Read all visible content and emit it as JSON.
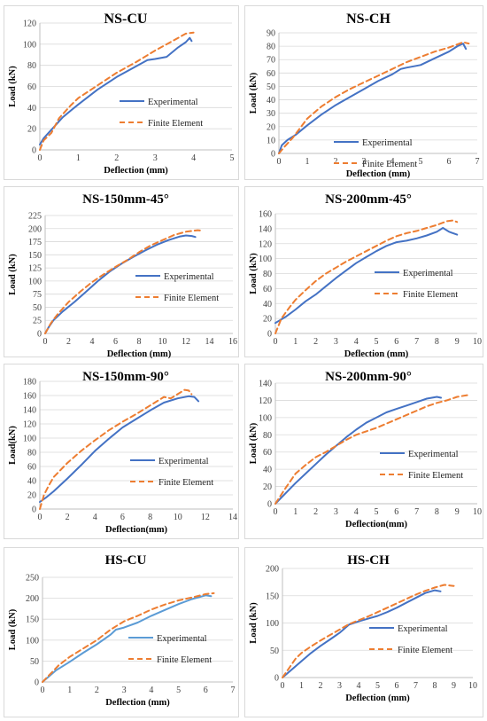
{
  "chart_data": [
    {
      "type": "line",
      "title": "NS-CU",
      "xlabel": "Deflection (mm)",
      "ylabel": "Load (kN)",
      "xlim": [
        0,
        5
      ],
      "xticks": [
        0,
        1,
        2,
        3,
        4,
        5
      ],
      "ylim": [
        0,
        120
      ],
      "yticks": [
        0,
        20,
        40,
        60,
        80,
        100,
        120
      ],
      "series": [
        {
          "name": "Experimental",
          "color": "#4472c4",
          "dash": false,
          "x": [
            0,
            0.1,
            0.2,
            0.4,
            0.6,
            0.8,
            1.0,
            1.5,
            2.0,
            2.5,
            2.8,
            3.0,
            3.3,
            3.6,
            3.8,
            3.9,
            3.95
          ],
          "y": [
            5,
            11,
            15,
            23,
            31,
            37,
            43,
            57,
            69,
            79,
            85,
            86,
            88,
            97,
            102,
            106,
            103
          ]
        },
        {
          "name": "Finite Element",
          "color": "#ed7d31",
          "dash": true,
          "x": [
            0,
            0.1,
            0.3,
            0.5,
            0.8,
            1.0,
            1.5,
            2.0,
            2.5,
            3.0,
            3.5,
            3.8,
            4.0
          ],
          "y": [
            0,
            9,
            16,
            30,
            42,
            49,
            61,
            73,
            83,
            94,
            104,
            110,
            111
          ]
        }
      ]
    },
    {
      "type": "line",
      "title": "NS-CH",
      "xlabel": "Deflection (mm)",
      "ylabel": "Load (kN)",
      "xlim": [
        0,
        7
      ],
      "xticks": [
        0,
        1,
        2,
        3,
        4,
        5,
        6,
        7
      ],
      "ylim": [
        0,
        90
      ],
      "yticks": [
        0,
        10,
        20,
        30,
        40,
        50,
        60,
        70,
        80,
        90
      ],
      "series": [
        {
          "name": "Experimental",
          "color": "#4472c4",
          "dash": false,
          "x": [
            0,
            0.1,
            0.3,
            0.6,
            1.0,
            1.5,
            2.0,
            2.5,
            3.0,
            3.5,
            4.0,
            4.3,
            4.5,
            5.0,
            5.5,
            6.0,
            6.3,
            6.5,
            6.6
          ],
          "y": [
            0,
            6,
            10,
            14,
            21,
            29,
            36,
            42,
            48,
            54,
            59,
            63,
            64,
            66,
            71,
            76,
            80,
            82,
            78
          ]
        },
        {
          "name": "Finite Element",
          "color": "#ed7d31",
          "dash": true,
          "x": [
            0,
            0.2,
            0.5,
            1.0,
            1.5,
            2.0,
            2.5,
            3.0,
            3.5,
            4.0,
            4.5,
            5.0,
            5.5,
            6.0,
            6.5,
            6.7
          ],
          "y": [
            0,
            5,
            12,
            26,
            35,
            42,
            48,
            53,
            58,
            63,
            68,
            72,
            76,
            79,
            83,
            82
          ]
        }
      ]
    },
    {
      "type": "line",
      "title": "NS-150mm-45°",
      "xlabel": "Deflection (mm)",
      "ylabel": "Load (kN)",
      "xlim": [
        0,
        16
      ],
      "xticks": [
        0,
        2,
        4,
        6,
        8,
        10,
        12,
        14,
        16
      ],
      "ylim": [
        0,
        225
      ],
      "yticks": [
        0,
        25,
        50,
        75,
        100,
        125,
        150,
        175,
        200,
        225
      ],
      "series": [
        {
          "name": "Experimental",
          "color": "#4472c4",
          "dash": false,
          "x": [
            0,
            0.3,
            0.7,
            1.5,
            2.5,
            3.5,
            4.5,
            5.5,
            6.5,
            7.5,
            8.5,
            9.5,
            10.5,
            11.5,
            12.0,
            12.5,
            12.8
          ],
          "y": [
            0,
            12,
            25,
            42,
            60,
            80,
            100,
            118,
            133,
            146,
            158,
            169,
            178,
            185,
            187,
            186,
            184
          ]
        },
        {
          "name": "Finite Element",
          "color": "#ed7d31",
          "dash": true,
          "x": [
            0,
            0.5,
            1.0,
            2.0,
            3.0,
            4.0,
            5.0,
            6.0,
            7.0,
            8.0,
            9.0,
            10.0,
            11.0,
            12.0,
            13.0,
            13.4
          ],
          "y": [
            0,
            20,
            35,
            60,
            80,
            98,
            113,
            127,
            140,
            155,
            168,
            178,
            188,
            194,
            197,
            196
          ]
        }
      ]
    },
    {
      "type": "line",
      "title": "NS-200mm-45°",
      "xlabel": "Deflection (mm)",
      "ylabel": "Load (kN)",
      "xlim": [
        0,
        10
      ],
      "xticks": [
        0,
        1,
        2,
        3,
        4,
        5,
        6,
        7,
        8,
        9,
        10
      ],
      "ylim": [
        0,
        160
      ],
      "yticks": [
        0,
        20,
        40,
        60,
        80,
        100,
        120,
        140,
        160
      ],
      "series": [
        {
          "name": "Experimental",
          "color": "#4472c4",
          "dash": false,
          "x": [
            0,
            0.5,
            1.0,
            1.5,
            2.0,
            2.5,
            3.0,
            3.5,
            4.0,
            4.5,
            5.0,
            5.5,
            6.0,
            6.5,
            7.0,
            7.5,
            8.0,
            8.3,
            8.6,
            9.0
          ],
          "y": [
            14,
            22,
            32,
            43,
            52,
            63,
            74,
            84,
            94,
            102,
            110,
            117,
            122,
            124,
            127,
            131,
            136,
            141,
            136,
            132
          ]
        },
        {
          "name": "Finite Element",
          "color": "#ed7d31",
          "dash": true,
          "x": [
            0,
            0.3,
            0.7,
            1.0,
            1.5,
            2.0,
            2.5,
            3.0,
            3.5,
            4.0,
            4.5,
            5.0,
            5.5,
            6.0,
            6.5,
            7.0,
            7.5,
            8.0,
            8.5,
            8.8,
            9.0
          ],
          "y": [
            0,
            20,
            35,
            45,
            58,
            70,
            80,
            88,
            96,
            103,
            110,
            117,
            124,
            130,
            134,
            137,
            141,
            145,
            150,
            151,
            149
          ]
        }
      ]
    },
    {
      "type": "line",
      "title": "NS-150mm-90°",
      "xlabel": "Deflection(mm)",
      "ylabel": "Load(kN)",
      "xlim": [
        0,
        14
      ],
      "xticks": [
        0,
        2,
        4,
        6,
        8,
        10,
        12,
        14
      ],
      "ylim": [
        0,
        180
      ],
      "yticks": [
        0,
        20,
        40,
        60,
        80,
        100,
        120,
        140,
        160,
        180
      ],
      "series": [
        {
          "name": "Experimental",
          "color": "#4472c4",
          "dash": false,
          "x": [
            0,
            0.5,
            1.0,
            2.0,
            3.0,
            4.0,
            5.0,
            6.0,
            7.0,
            8.0,
            9.0,
            10.0,
            10.8,
            11.2,
            11.5
          ],
          "y": [
            10,
            17,
            25,
            43,
            62,
            82,
            99,
            115,
            127,
            139,
            150,
            156,
            159,
            158,
            152
          ]
        },
        {
          "name": "Finite Element",
          "color": "#ed7d31",
          "dash": true,
          "x": [
            0,
            0.3,
            0.7,
            1.0,
            2.0,
            3.0,
            4.0,
            5.0,
            6.0,
            7.0,
            8.0,
            8.5,
            9.0,
            9.5,
            10.0,
            10.5,
            10.8,
            11.0
          ],
          "y": [
            0,
            20,
            35,
            45,
            65,
            82,
            97,
            111,
            123,
            134,
            146,
            152,
            158,
            156,
            162,
            168,
            167,
            162
          ]
        }
      ]
    },
    {
      "type": "line",
      "title": "NS-200mm-90°",
      "xlabel": "Deflection(mm)",
      "ylabel": "Load (kN)",
      "xlim": [
        0,
        10
      ],
      "xticks": [
        0,
        1,
        2,
        3,
        4,
        5,
        6,
        7,
        8,
        9,
        10
      ],
      "ylim": [
        0,
        140
      ],
      "yticks": [
        0,
        20,
        40,
        60,
        80,
        100,
        120,
        140
      ],
      "series": [
        {
          "name": "Experimental",
          "color": "#4472c4",
          "dash": false,
          "x": [
            0,
            0.5,
            1.0,
            1.5,
            2.0,
            2.5,
            3.0,
            3.5,
            4.0,
            4.5,
            5.0,
            5.5,
            6.0,
            6.5,
            7.0,
            7.5,
            8.0,
            8.2
          ],
          "y": [
            0,
            12,
            24,
            35,
            46,
            57,
            67,
            77,
            86,
            94,
            100,
            106,
            110,
            114,
            118,
            122,
            124,
            123
          ]
        },
        {
          "name": "Finite Element",
          "color": "#ed7d31",
          "dash": true,
          "x": [
            0,
            0.5,
            1.0,
            1.5,
            2.0,
            2.5,
            3.0,
            3.5,
            4.0,
            4.5,
            5.0,
            5.5,
            6.0,
            6.5,
            7.0,
            7.5,
            8.0,
            8.5,
            9.0,
            9.5
          ],
          "y": [
            0,
            18,
            35,
            45,
            54,
            60,
            67,
            74,
            80,
            84,
            88,
            93,
            98,
            103,
            108,
            113,
            117,
            120,
            124,
            126
          ]
        }
      ]
    },
    {
      "type": "line",
      "title": "HS-CU",
      "xlabel": "Deflection (mm)",
      "ylabel": "Load (kN)",
      "xlim": [
        0,
        7
      ],
      "xticks": [
        0,
        1,
        2,
        3,
        4,
        5,
        6,
        7
      ],
      "ylim": [
        0,
        250
      ],
      "yticks": [
        0,
        50,
        100,
        150,
        200,
        250
      ],
      "series": [
        {
          "name": "Experimental",
          "color": "#5b9bd5",
          "dash": false,
          "x": [
            0,
            0.5,
            1.0,
            1.5,
            2.0,
            2.5,
            2.7,
            3.0,
            3.5,
            4.0,
            4.5,
            5.0,
            5.5,
            6.0,
            6.2
          ],
          "y": [
            0,
            28,
            48,
            70,
            90,
            113,
            125,
            130,
            142,
            158,
            172,
            186,
            198,
            207,
            205
          ]
        },
        {
          "name": "Finite Element",
          "color": "#ed7d31",
          "dash": true,
          "x": [
            0,
            0.3,
            0.6,
            1.0,
            1.5,
            2.0,
            2.5,
            3.0,
            3.5,
            4.0,
            4.5,
            5.0,
            5.5,
            6.0,
            6.3
          ],
          "y": [
            0,
            20,
            40,
            60,
            80,
            100,
            125,
            145,
            158,
            173,
            185,
            195,
            202,
            210,
            212
          ]
        }
      ]
    },
    {
      "type": "line",
      "title": "HS-CH",
      "xlabel": "Deflection (mm)",
      "ylabel": "Load (kN)",
      "xlim": [
        0,
        10
      ],
      "xticks": [
        0,
        1,
        2,
        3,
        4,
        5,
        6,
        7,
        8,
        9,
        10
      ],
      "ylim": [
        0,
        200
      ],
      "yticks": [
        0,
        50,
        100,
        150,
        200
      ],
      "series": [
        {
          "name": "Experimental",
          "color": "#4472c4",
          "dash": false,
          "x": [
            0,
            0.5,
            1.0,
            1.5,
            2.0,
            2.5,
            3.0,
            3.5,
            4.0,
            4.5,
            5.0,
            5.5,
            6.0,
            6.5,
            7.0,
            7.5,
            8.0,
            8.3
          ],
          "y": [
            0,
            15,
            30,
            45,
            58,
            70,
            82,
            97,
            103,
            108,
            113,
            120,
            128,
            137,
            146,
            155,
            160,
            158
          ]
        },
        {
          "name": "Finite Element",
          "color": "#ed7d31",
          "dash": true,
          "x": [
            0,
            0.3,
            0.7,
            1.0,
            1.5,
            2.0,
            2.5,
            3.0,
            3.5,
            4.0,
            4.5,
            5.0,
            5.5,
            6.0,
            6.5,
            7.0,
            7.5,
            8.0,
            8.5,
            9.0
          ],
          "y": [
            0,
            15,
            35,
            45,
            57,
            68,
            78,
            88,
            98,
            105,
            112,
            120,
            128,
            136,
            144,
            152,
            159,
            165,
            170,
            168
          ]
        }
      ]
    }
  ]
}
